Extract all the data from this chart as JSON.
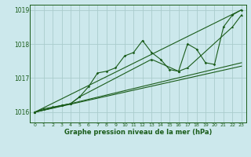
{
  "xlabel": "Graphe pression niveau de la mer (hPa)",
  "background_color": "#cce8ec",
  "grid_color": "#aacccc",
  "line_color": "#1a5c1a",
  "ylim": [
    1015.7,
    1019.15
  ],
  "xlim": [
    -0.5,
    23.5
  ],
  "yticks": [
    1016,
    1017,
    1018,
    1019
  ],
  "xticks": [
    0,
    1,
    2,
    3,
    4,
    5,
    6,
    7,
    8,
    9,
    10,
    11,
    12,
    13,
    14,
    15,
    16,
    17,
    18,
    19,
    20,
    21,
    22,
    23
  ],
  "series1_x": [
    0,
    1,
    2,
    3,
    4,
    5,
    6,
    7,
    8,
    9,
    10,
    11,
    12,
    13,
    14,
    15,
    16,
    17,
    18,
    19,
    20,
    21,
    22,
    23
  ],
  "series1_y": [
    1016.0,
    1016.1,
    1016.15,
    1016.2,
    1016.25,
    1016.45,
    1016.75,
    1017.15,
    1017.2,
    1017.3,
    1017.65,
    1017.75,
    1018.1,
    1017.75,
    1017.55,
    1017.25,
    1017.2,
    1018.0,
    1017.85,
    1017.45,
    1017.4,
    1018.5,
    1018.85,
    1019.0
  ],
  "series2_x": [
    0,
    3,
    4,
    5,
    13,
    16,
    17,
    22,
    23
  ],
  "series2_y": [
    1016.0,
    1016.2,
    1016.25,
    1016.45,
    1017.55,
    1017.2,
    1017.3,
    1018.5,
    1018.85
  ],
  "line1_x": [
    0,
    23
  ],
  "line1_y": [
    1016.0,
    1019.0
  ],
  "line2_x": [
    0,
    23
  ],
  "line2_y": [
    1016.0,
    1017.35
  ],
  "line3_x": [
    0,
    23
  ],
  "line3_y": [
    1016.0,
    1017.45
  ]
}
